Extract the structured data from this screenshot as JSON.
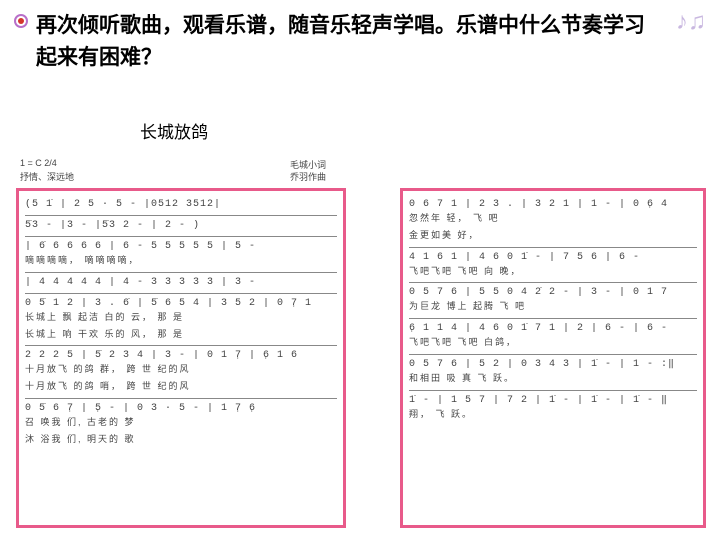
{
  "heading": "再次倾听歌曲，观看乐谱，随音乐轻声学唱。乐谱中什么节奏学习起来有困难？",
  "song_title": "长城放鸽",
  "meta": {
    "key": "1 = C  2/4",
    "tempo": "抒情、深远地",
    "lyricist": "毛城小词",
    "composer": "乔羽作曲"
  },
  "music_icon_color": "#c9b8e0",
  "border_color": "#e85a8a",
  "bullet_ring": "#b86fc9",
  "bullet_dot": "#d4352c",
  "left_score": [
    {
      "n": "(5  1̇ | 2 5 ·  5  - |0512 3512|",
      "l": ""
    },
    {
      "n": "5̇3 - |3  -  |5̇3 2 - | 2  -  )",
      "l": ""
    },
    {
      "n": "| 6̇ 6 6 6 6 | 6  -  5 5 5 5 5 | 5  -",
      "l": "嘀嘀嘀嘀，    嘀嘀嘀嘀，"
    },
    {
      "n": "| 4 4 4 4 4 | 4  -  3 3 3 3 3 | 3  -",
      "l": ""
    },
    {
      "n": "0 5̇ 1 2 | 3 . 6̇ | 5̇ 6 5 4 | 3 5 2 | 0 7̣ 1",
      "l": "长城上 飘   起洁 白的 云，   那 是\n长城上 响   干欢 乐的 风，   那 是"
    },
    {
      "n": "2 2 2 5 | 5̇ 2 3 4 | 3 - | 0 1  7̣ | 6̣ 1 6",
      "l": "十月放飞 的鸽  群，   跨  世 纪的风\n十月放飞 的鸽  哨，   跨  世 纪的风"
    },
    {
      "n": "0 5̇  6  7̣ | 5̣  - | 0 3  · 5 - | 1 7̣ 6̣",
      "l": "召 唤我 们, 古老的 梦\n沐 浴我 们, 明天的 歌"
    }
  ],
  "right_score": [
    {
      "n": "0 6 7 1 | 2 3 . | 3 2 1 | 1  - | 0 6̣  4",
      "l": "忽然年  轻，         飞 吧\n金更如美  好，"
    },
    {
      "n": "4 1 6 1 | 4 6 0  1̇ - | 7 5 6 | 6 -",
      "l": "飞吧飞吧 飞吧  向     晚，"
    },
    {
      "n": "0 5 7 6 | 5 5 0 4  2̇ 2 - | 3 - | 0 1  7",
      "l": "为巨龙 博上 起腾        飞 吧"
    },
    {
      "n": "6̣ 1 1 4 | 4 6 0  1̇ 7 1 | 2 | 6 - | 6  -",
      "l": "飞吧飞吧 飞吧  白鸽，"
    },
    {
      "n": "0 5 7 6 | 5  2 | 0 3 4 3 | 1̇ - | 1  - :‖",
      "l": "和相田 吸 真   飞  跃。"
    },
    {
      "n": "1̇ - | 1 5 7 | 7  2 | 1̇ - | 1̇ - | 1̇ - ‖",
      "l": "翔，   飞       跃。"
    }
  ]
}
